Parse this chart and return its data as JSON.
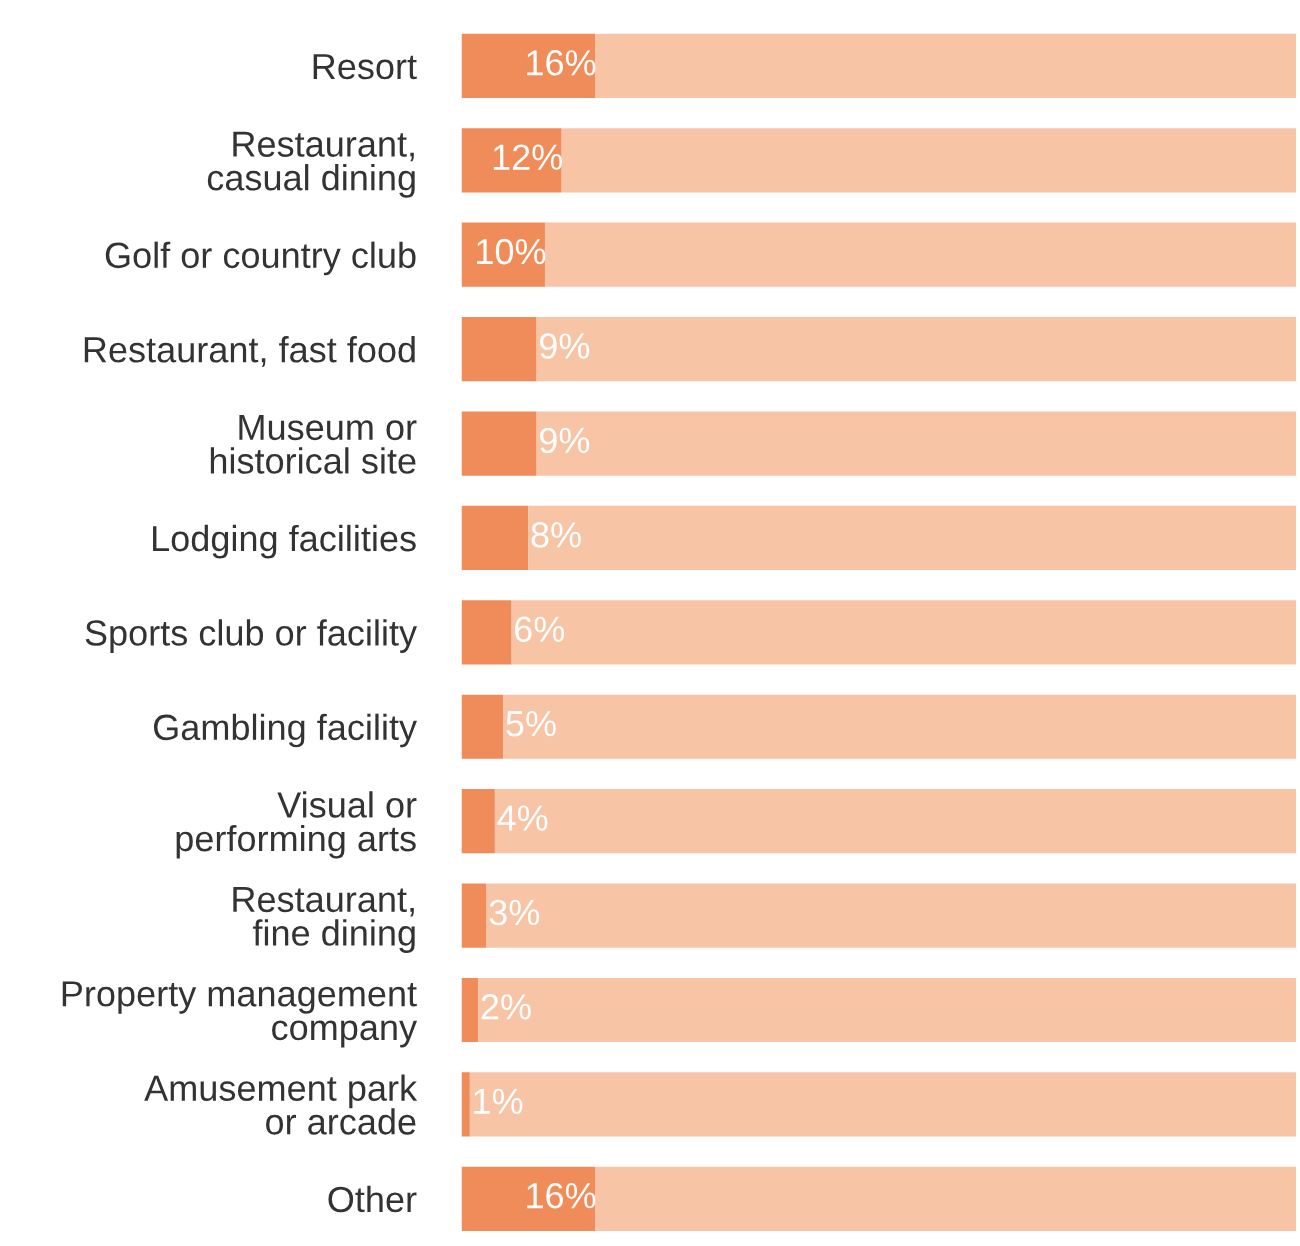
{
  "chart_data": {
    "type": "bar",
    "orientation": "horizontal",
    "stacked": true,
    "tick_labels": "y",
    "grid": false,
    "legend": false,
    "categories": [
      "Resort",
      "Restaurant,\ncasual dining",
      "Golf or country club",
      "Restaurant, fast food",
      "Museum or\nhistorical site",
      "Lodging facilities",
      "Sports club or facility",
      "Gambling facility",
      "Visual or\nperforming arts",
      "Restaurant,\nfine dining",
      "Property management\ncompany",
      "Amusement park\nor arcade",
      "Other"
    ],
    "xlim": [
      0,
      100
    ],
    "series": [
      {
        "color": "#f08c5a",
        "values": [
          16,
          12,
          10,
          9,
          9,
          8,
          6,
          5,
          4,
          3,
          2,
          1,
          16
        ],
        "value_labels": [
          "16%",
          "12%",
          "10%",
          "9%",
          "9%",
          "8%",
          "6%",
          "5%",
          "4%",
          "3%",
          "2%",
          "1%",
          "16%"
        ]
      },
      {
        "color": "#f7c4a5",
        "values": [
          84,
          88,
          90,
          91,
          91,
          92,
          94,
          95,
          96,
          97,
          98,
          99,
          84
        ]
      }
    ]
  }
}
